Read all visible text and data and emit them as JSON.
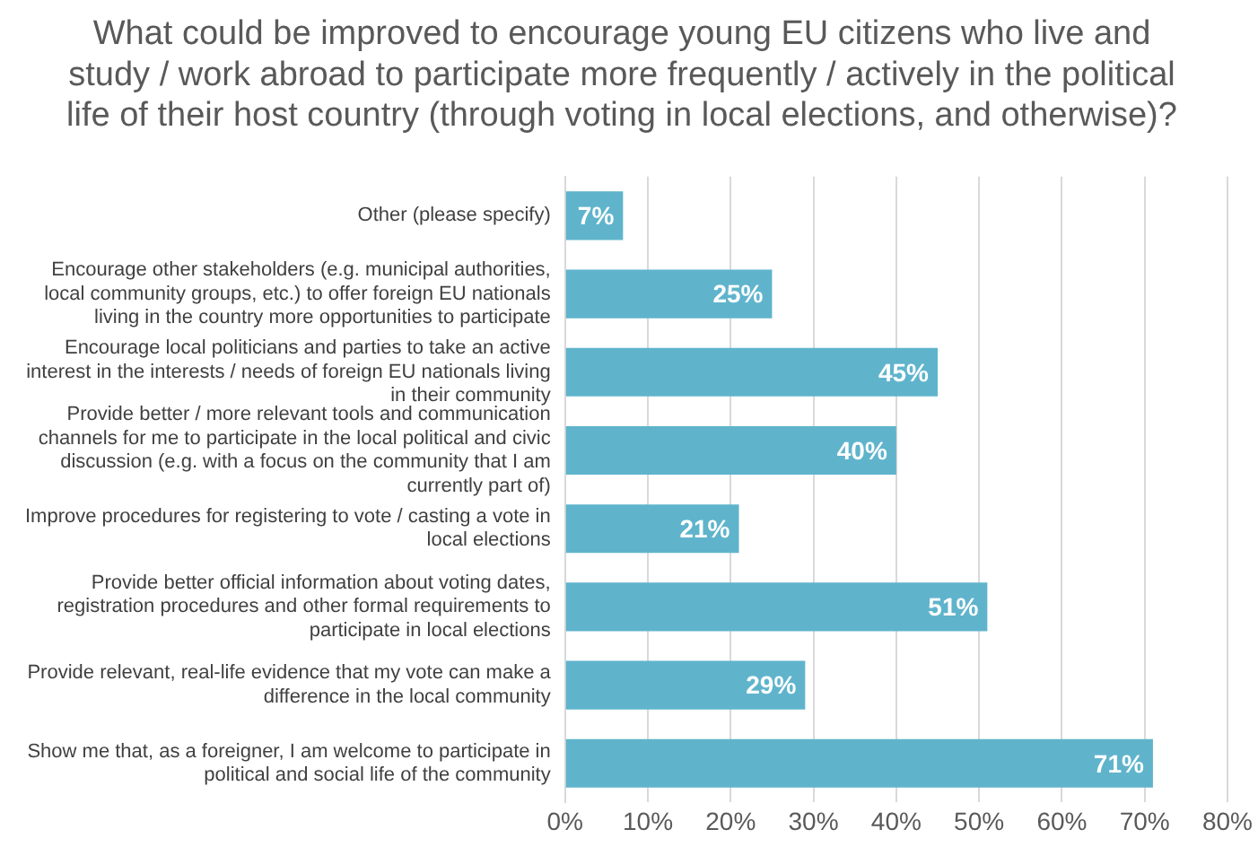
{
  "chart_data": {
    "type": "bar",
    "orientation": "horizontal",
    "title": "What could be improved to encourage young EU citizens who live and study / work abroad to participate more frequently / actively in the political life of their host country (through voting in local elections, and otherwise)?",
    "categories": [
      "Other (please specify)",
      "Encourage other stakeholders (e.g. municipal authorities, local community groups, etc.) to offer foreign EU nationals living in the country more opportunities to participate",
      "Encourage local politicians and parties to take an active interest in the interests / needs of foreign EU nationals living in their community",
      "Provide better / more relevant tools and communication channels for me to participate in the local political and civic discussion (e.g. with a focus on the community that I am currently part of)",
      "Improve procedures for registering to vote / casting a vote in local elections",
      "Provide better official information about voting dates, registration procedures and other formal requirements to participate in local elections",
      "Provide relevant, real-life evidence that my vote can make a difference in the local community",
      "Show me that, as a foreigner, I am welcome to participate in political and social life of the community"
    ],
    "values": [
      7,
      25,
      45,
      40,
      21,
      51,
      29,
      71
    ],
    "value_labels": [
      "7%",
      "25%",
      "45%",
      "40%",
      "21%",
      "51%",
      "29%",
      "71%"
    ],
    "color": "#5fb4cc",
    "xlim": [
      0,
      80
    ],
    "xticks": [
      {
        "value": 0,
        "label": "0%"
      },
      {
        "value": 10,
        "label": "10%"
      },
      {
        "value": 20,
        "label": "20%"
      },
      {
        "value": 30,
        "label": "30%"
      },
      {
        "value": 40,
        "label": "40%"
      },
      {
        "value": 50,
        "label": "50%"
      },
      {
        "value": 60,
        "label": "60%"
      },
      {
        "value": 70,
        "label": "70%"
      },
      {
        "value": 80,
        "label": "80%"
      }
    ],
    "grid": "x",
    "legend": false
  }
}
